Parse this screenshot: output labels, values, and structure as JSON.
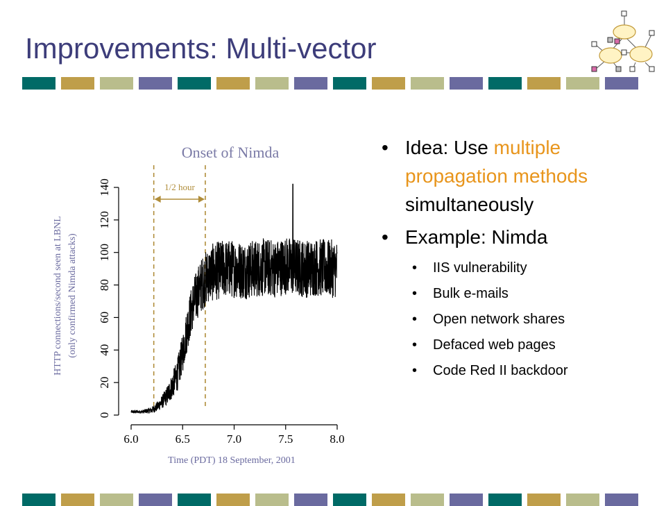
{
  "slide": {
    "title": "Improvements: Multi-vector",
    "stripe_colors": [
      "#006a66",
      "#bf9e4a",
      "#b9bd8c",
      "#6a6a9f"
    ]
  },
  "bullets": {
    "idea": {
      "prefix": "Idea: Use ",
      "highlight": "multiple propagation methods",
      "suffix": " simultaneously"
    },
    "example": "Example: Nimda",
    "sub_items": [
      "IIS vulnerability",
      "Bulk e-mails",
      "Open network shares",
      "Defaced web pages",
      "Code Red II backdoor"
    ]
  },
  "colors": {
    "title": "#3d3d7a",
    "highlight": "#e8951c",
    "annotation": "#b08d3a",
    "axis_label": "#6a6a9f",
    "annotation_title": "#7a7aa6"
  },
  "chart_data": {
    "type": "line",
    "title": "",
    "xlabel": "Time (PDT) 18 September, 2001",
    "ylabel": "HTTP connections/second seen at LBNL",
    "ylabel_sub": "(only confirmed Nimda attacks)",
    "xlim": [
      6.0,
      8.0
    ],
    "ylim": [
      0,
      140
    ],
    "x_ticks": [
      "6.0",
      "6.5",
      "7.0",
      "7.5",
      "8.0"
    ],
    "y_ticks": [
      "0",
      "20",
      "40",
      "60",
      "80",
      "100",
      "120",
      "140"
    ],
    "grid": false,
    "annotation_title": "Onset of Nimda",
    "annotation_span_label": "1/2 hour",
    "annotation_span_x": [
      6.22,
      6.72
    ],
    "series": [
      {
        "values_note": "",
        "x": [
          6.0,
          6.1,
          6.2,
          6.25,
          6.3,
          6.35,
          6.4,
          6.45,
          6.5,
          6.55,
          6.6,
          6.65,
          6.7,
          6.75,
          6.8,
          6.9,
          7.0,
          7.1,
          7.2,
          7.3,
          7.4,
          7.5,
          7.6,
          7.7,
          7.8,
          7.9,
          8.0
        ],
        "center": [
          2,
          2,
          3,
          5,
          8,
          12,
          18,
          25,
          38,
          55,
          68,
          76,
          82,
          86,
          88,
          90,
          90,
          89,
          90,
          91,
          90,
          92,
          91,
          90,
          91,
          90,
          90
        ],
        "spread": [
          1,
          1,
          2,
          3,
          4,
          6,
          8,
          10,
          12,
          14,
          15,
          16,
          17,
          17,
          18,
          18,
          18,
          18,
          18,
          18,
          18,
          18,
          18,
          18,
          18,
          18,
          18
        ],
        "peak": {
          "x": 7.57,
          "y": 142
        }
      }
    ]
  }
}
